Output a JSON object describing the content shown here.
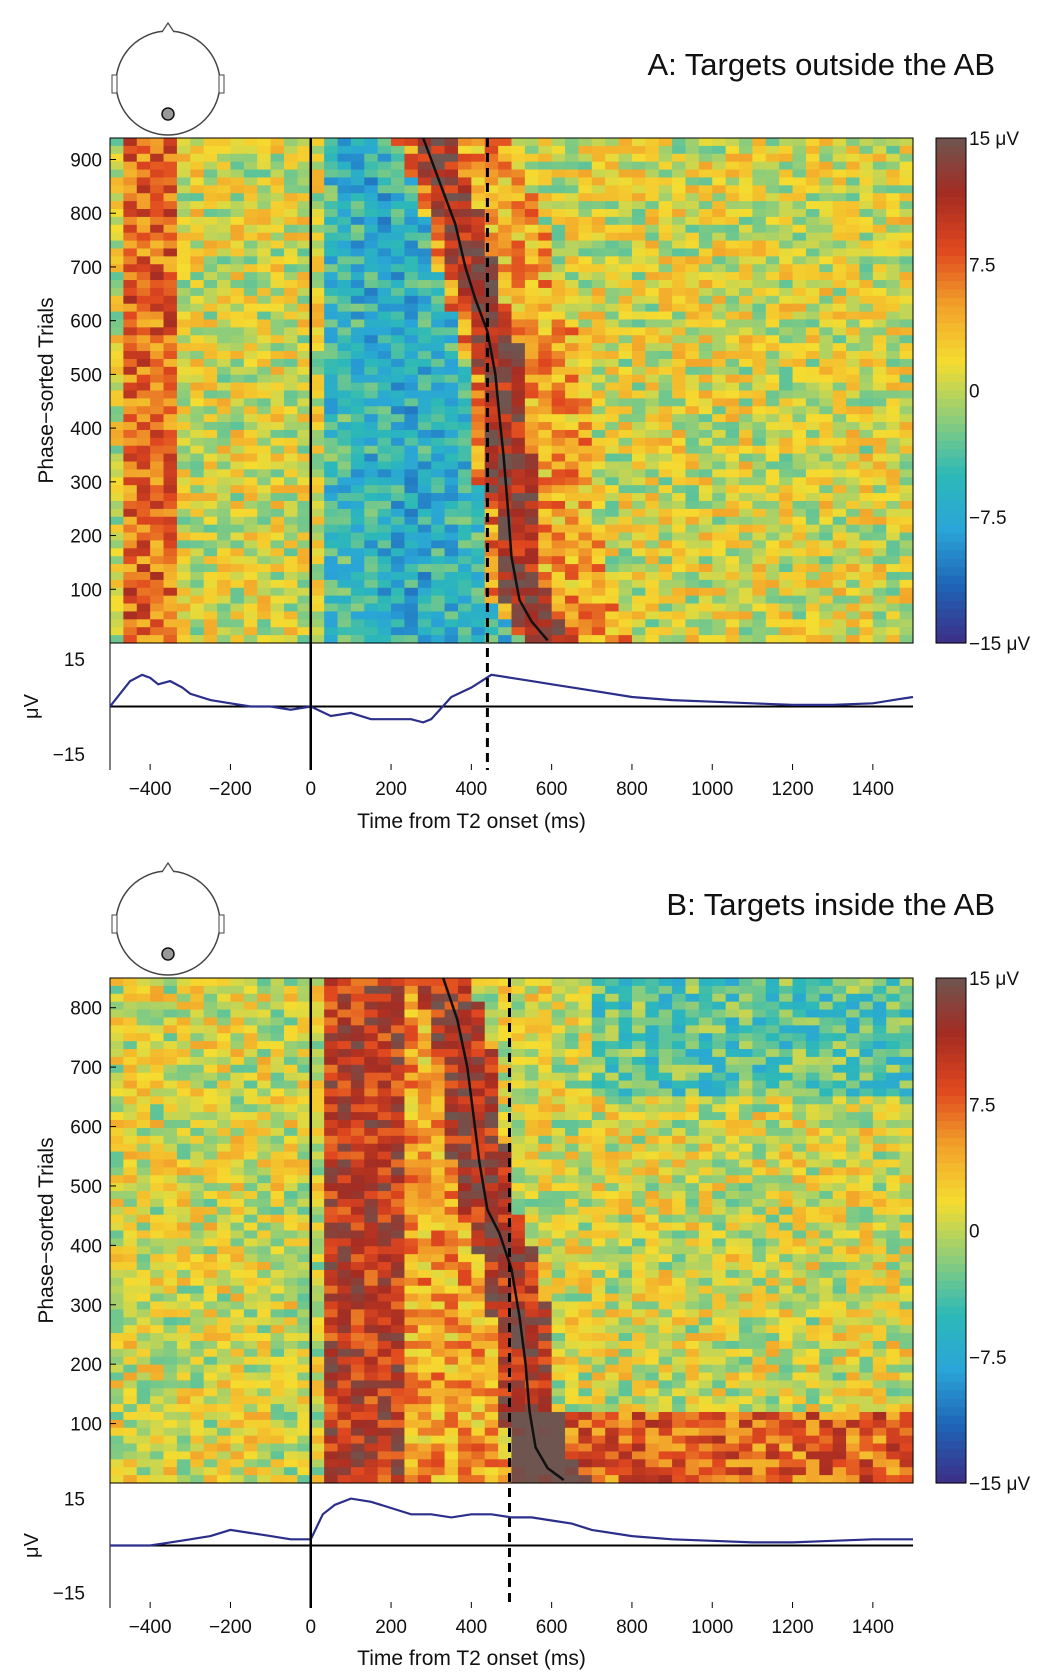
{
  "colors": {
    "colormap": [
      "#3d2f86",
      "#1f63b5",
      "#2aa4d8",
      "#2cb9b8",
      "#8ecd7a",
      "#f5dc30",
      "#f2a22a",
      "#e0481f",
      "#a52c22",
      "#6e5550"
    ],
    "trace": "#2b2f8a",
    "axis": "#000000",
    "electrode": "#999999"
  },
  "chart_data": [
    {
      "type": "heatmap",
      "title": "A: Targets outside the AB",
      "ylabel": "Phase−sorted Trials",
      "xlabel": "Time from T2 onset (ms)",
      "xlim": [
        -500,
        1500
      ],
      "ylim": [
        0,
        940
      ],
      "x_ticks": [
        "−400",
        "−200",
        "0",
        "200",
        "400",
        "600",
        "800",
        "1000",
        "1200",
        "1400"
      ],
      "y_ticks": [
        "100",
        "200",
        "300",
        "400",
        "500",
        "600",
        "700",
        "800",
        "900"
      ],
      "colorbar": {
        "range": [
          -15,
          15
        ],
        "tick_labels": [
          "15 μV",
          "7.5",
          "0",
          "−7.5",
          "−15 μV"
        ]
      },
      "onset_line_x": 0,
      "dashed_line_x": 440,
      "sort_curve": [
        [
          280,
          940
        ],
        [
          330,
          840
        ],
        [
          360,
          780
        ],
        [
          385,
          700
        ],
        [
          410,
          640
        ],
        [
          440,
          580
        ],
        [
          460,
          500
        ],
        [
          470,
          420
        ],
        [
          480,
          350
        ],
        [
          490,
          260
        ],
        [
          500,
          160
        ],
        [
          520,
          80
        ],
        [
          550,
          40
        ],
        [
          590,
          5
        ]
      ],
      "erp": {
        "ylabel": "μV",
        "ylim": [
          -20,
          20
        ],
        "y_ticks": [
          "15",
          "−15"
        ],
        "x": [
          -500,
          -450,
          -420,
          -400,
          -380,
          -350,
          -320,
          -300,
          -250,
          -200,
          -150,
          -100,
          -50,
          0,
          50,
          100,
          150,
          200,
          250,
          280,
          300,
          350,
          400,
          450,
          500,
          550,
          600,
          700,
          800,
          900,
          1000,
          1100,
          1200,
          1300,
          1400,
          1450,
          1500
        ],
        "y": [
          0,
          8,
          10,
          9,
          7,
          8,
          6,
          4,
          2,
          1,
          0,
          0,
          -1,
          0,
          -3,
          -2,
          -4,
          -4,
          -4,
          -5,
          -4,
          3,
          6,
          10,
          9,
          8,
          7,
          5,
          3,
          2,
          1.5,
          1,
          0.5,
          0.5,
          1,
          2,
          3
        ]
      }
    },
    {
      "type": "heatmap",
      "title": "B: Targets inside the AB",
      "ylabel": "Phase−sorted Trials",
      "xlabel": "Time from T2 onset (ms)",
      "xlim": [
        -500,
        1500
      ],
      "ylim": [
        0,
        850
      ],
      "x_ticks": [
        "−400",
        "−200",
        "0",
        "200",
        "400",
        "600",
        "800",
        "1000",
        "1200",
        "1400"
      ],
      "y_ticks": [
        "100",
        "200",
        "300",
        "400",
        "500",
        "600",
        "700",
        "800"
      ],
      "colorbar": {
        "range": [
          -15,
          15
        ],
        "tick_labels": [
          "15 μV",
          "7.5",
          "0",
          "−7.5",
          "−15 μV"
        ]
      },
      "onset_line_x": 0,
      "dashed_line_x": 495,
      "sort_curve": [
        [
          330,
          850
        ],
        [
          365,
          780
        ],
        [
          390,
          700
        ],
        [
          405,
          620
        ],
        [
          420,
          540
        ],
        [
          440,
          460
        ],
        [
          470,
          420
        ],
        [
          500,
          360
        ],
        [
          520,
          280
        ],
        [
          535,
          200
        ],
        [
          545,
          120
        ],
        [
          560,
          60
        ],
        [
          590,
          25
        ],
        [
          630,
          5
        ]
      ],
      "erp": {
        "ylabel": "μV",
        "ylim": [
          -20,
          20
        ],
        "y_ticks": [
          "15",
          "−15"
        ],
        "x": [
          -500,
          -400,
          -350,
          -300,
          -250,
          -200,
          -150,
          -100,
          -50,
          0,
          30,
          60,
          100,
          150,
          200,
          250,
          300,
          350,
          400,
          450,
          500,
          550,
          600,
          650,
          700,
          800,
          900,
          1000,
          1100,
          1200,
          1300,
          1400,
          1500
        ],
        "y": [
          0,
          0,
          1,
          2,
          3,
          5,
          4,
          3,
          2,
          2,
          10,
          13,
          15,
          14,
          12,
          10,
          10,
          9,
          10,
          10,
          9,
          9,
          8,
          7,
          5,
          3,
          2,
          1.5,
          1,
          1,
          1.5,
          2,
          2
        ]
      }
    }
  ]
}
